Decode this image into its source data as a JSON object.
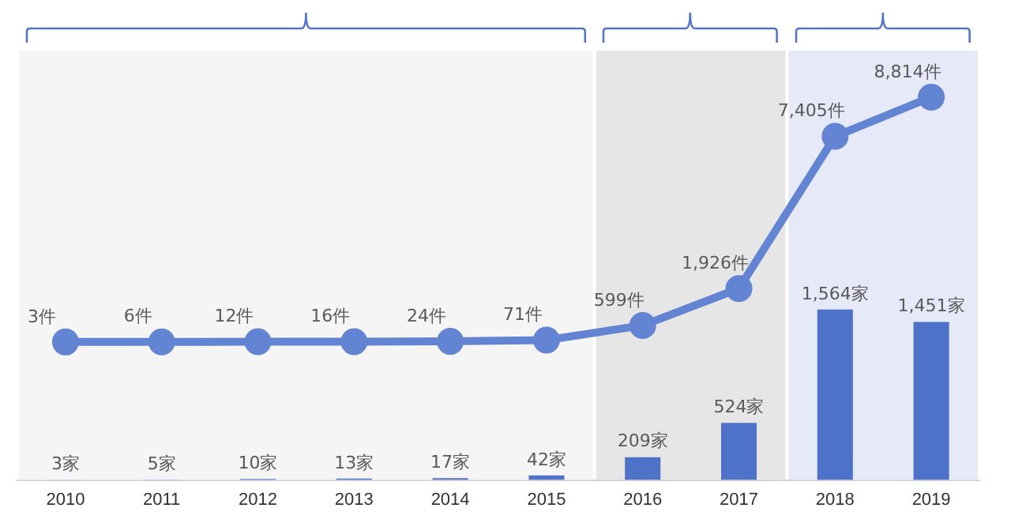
{
  "chart_data": {
    "type": "bar",
    "categories": [
      "2010",
      "2011",
      "2012",
      "2013",
      "2014",
      "2015",
      "2016",
      "2017",
      "2018",
      "2019"
    ],
    "series": [
      {
        "color": "#4f72c9",
        "values": [
          3,
          5,
          10,
          13,
          17,
          42,
          209,
          524,
          1564,
          1451
        ],
        "value_labels": [
          "3家",
          "5家",
          "10家",
          "13家",
          "17家",
          "42家",
          "209家",
          "524家",
          "1,564家",
          "1,451家"
        ]
      },
      {
        "type": "line",
        "axis": "y2",
        "color": "#6384d3",
        "marker": "circle",
        "values": [
          3,
          6,
          12,
          16,
          24,
          71,
          599,
          1926,
          7405,
          8814
        ],
        "value_labels": [
          "3件",
          "6件",
          "12件",
          "16件",
          "24件",
          "71件",
          "599件",
          "1,926件",
          "7,405件",
          "8,814件"
        ]
      }
    ],
    "bands": [
      {
        "axis": "x",
        "from": "2010",
        "to": "2015",
        "color": "#f5f5f5"
      },
      {
        "axis": "x",
        "from": "2016",
        "to": "2017",
        "color": "#e6e6e6"
      },
      {
        "axis": "x",
        "from": "2018",
        "to": "2019",
        "color": "#e6e9f7"
      }
    ],
    "ylim": [
      0,
      3940
    ],
    "y2lim": [
      -4965,
      10490
    ],
    "tick_labels": "x",
    "grid": false,
    "legend": false
  }
}
